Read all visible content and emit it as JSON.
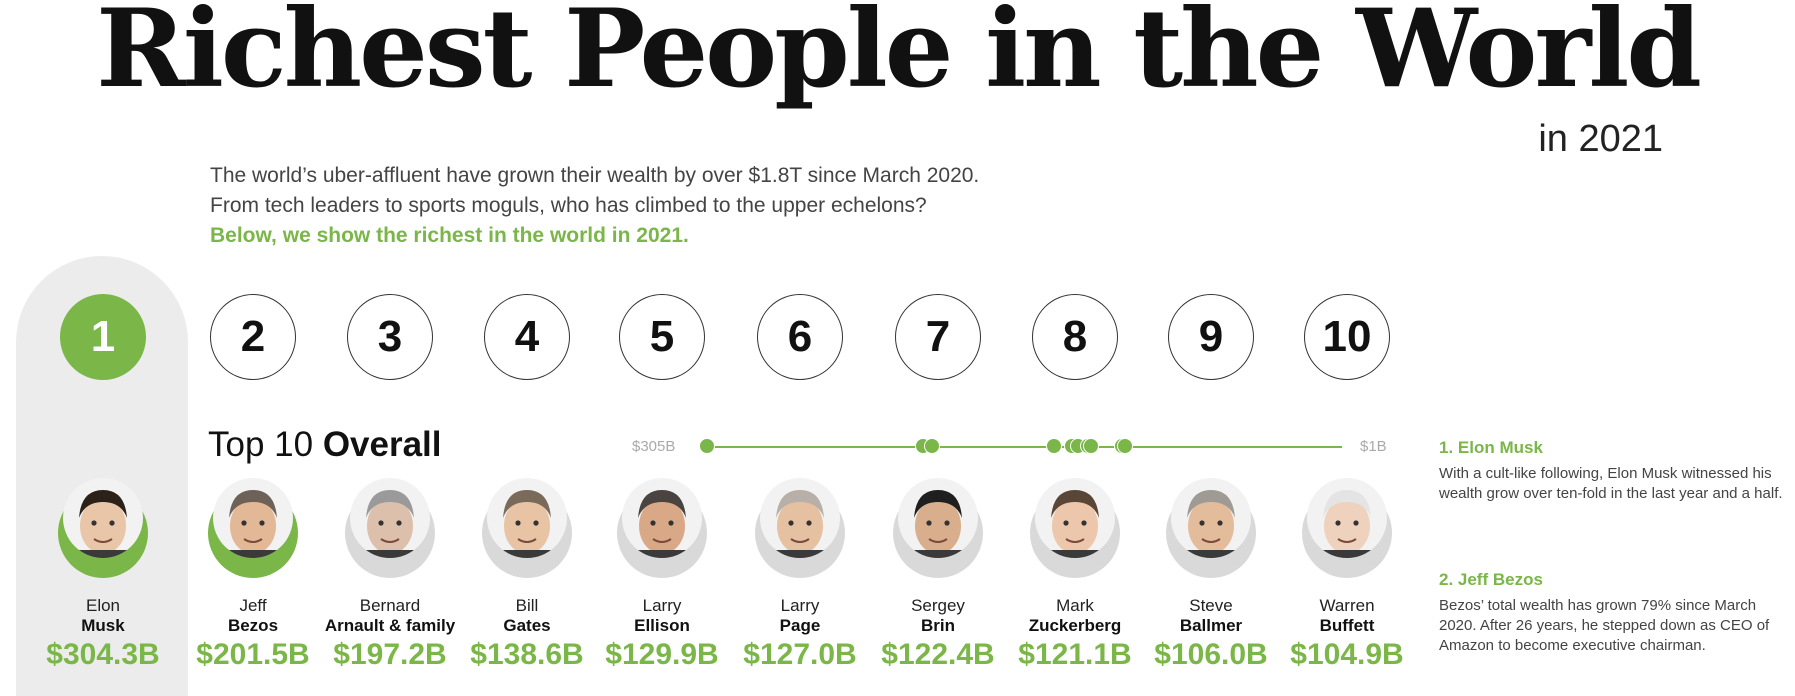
{
  "header": {
    "title": "Richest People in the World",
    "year": "in 2021",
    "intro_line1": "The world’s uber-affluent have grown their wealth by over $1.8T since March 2020.",
    "intro_line2": "From tech leaders to sports moguls, who has climbed to the upper echelons?",
    "intro_highlight": "Below, we show the richest in the world in 2021."
  },
  "section": {
    "title_light": "Top 10 ",
    "title_bold": "Overall"
  },
  "scale": {
    "max_label": "$305B",
    "min_label": "$1B",
    "max_value": 305,
    "min_value": 1
  },
  "people": [
    {
      "rank": "1",
      "first": "Elon",
      "last": "Musk",
      "worth": "$304.3B",
      "value": 304.3
    },
    {
      "rank": "2",
      "first": "Jeff",
      "last": "Bezos",
      "worth": "$201.5B",
      "value": 201.5
    },
    {
      "rank": "3",
      "first": "Bernard",
      "last": "Arnault & family",
      "worth": "$197.2B",
      "value": 197.2
    },
    {
      "rank": "4",
      "first": "Bill",
      "last": "Gates",
      "worth": "$138.6B",
      "value": 138.6
    },
    {
      "rank": "5",
      "first": "Larry",
      "last": "Ellison",
      "worth": "$129.9B",
      "value": 129.9
    },
    {
      "rank": "6",
      "first": "Larry",
      "last": "Page",
      "worth": "$127.0B",
      "value": 127.0
    },
    {
      "rank": "7",
      "first": "Sergey",
      "last": "Brin",
      "worth": "$122.4B",
      "value": 122.4
    },
    {
      "rank": "8",
      "first": "Mark",
      "last": "Zuckerberg",
      "worth": "$121.1B",
      "value": 121.1
    },
    {
      "rank": "9",
      "first": "Steve",
      "last": "Ballmer",
      "worth": "$106.0B",
      "value": 106.0
    },
    {
      "rank": "10",
      "first": "Warren",
      "last": "Buffett",
      "worth": "$104.9B",
      "value": 104.9
    }
  ],
  "notes": [
    {
      "heading": "1. Elon Musk",
      "body": "With a cult-like following, Elon Musk witnessed his wealth grow over ten-fold in the last year and a half."
    },
    {
      "heading": "2. Jeff Bezos",
      "body": "Bezos’ total wealth has grown 79% since March 2020. After 26 years, he stepped down as CEO of Amazon to become executive chairman."
    }
  ],
  "colors": {
    "accent": "#7ab648",
    "highlight_bg": "#ececec"
  },
  "icons": {
    "portraits": "person-portrait-icon"
  }
}
